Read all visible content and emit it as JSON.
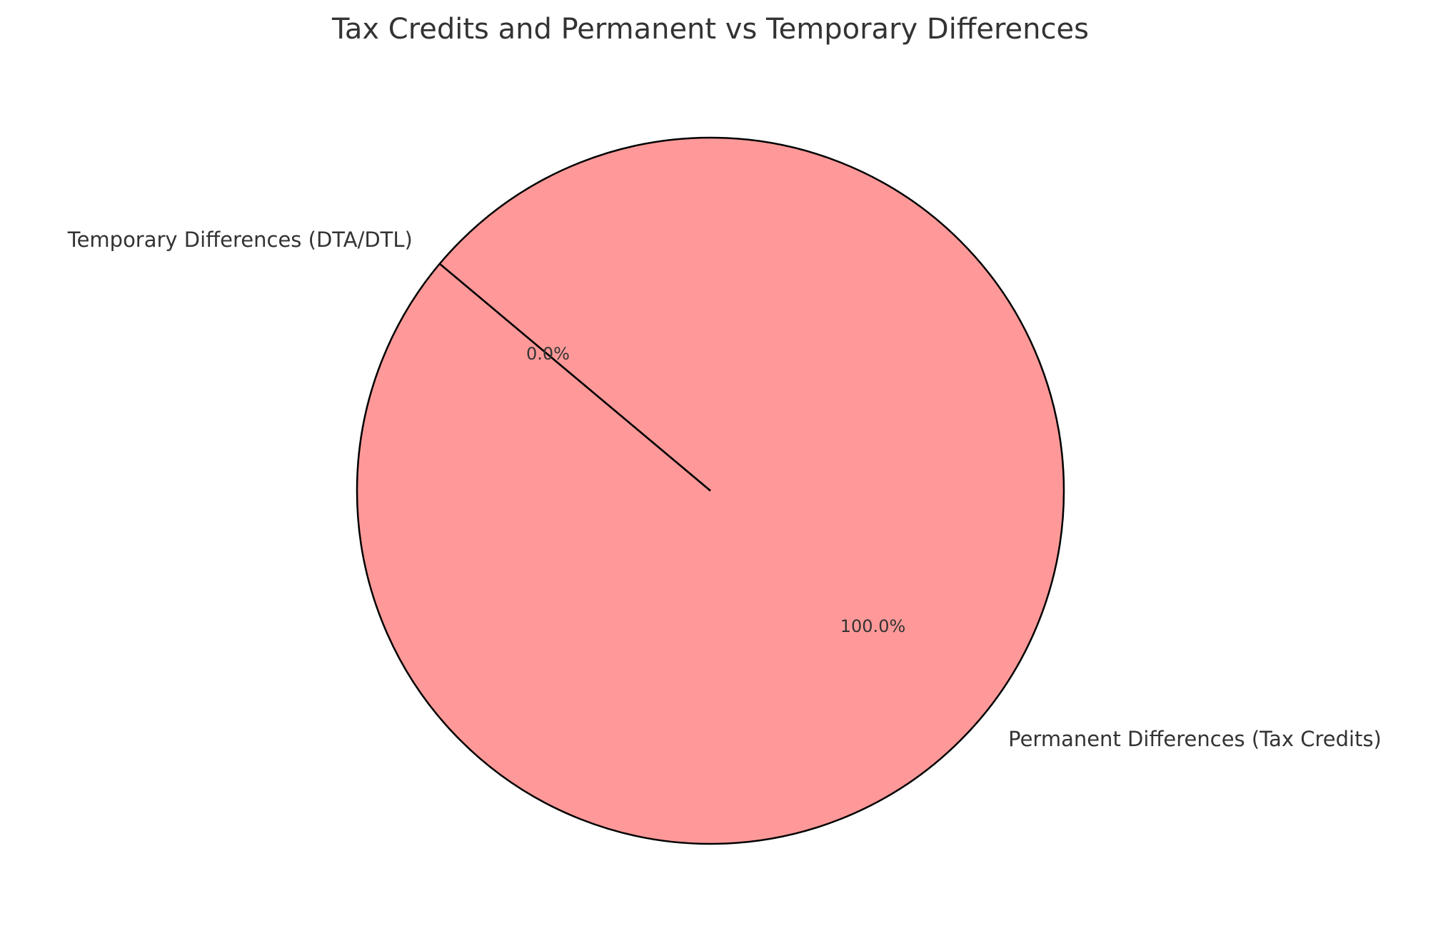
{
  "chart_data": {
    "type": "pie",
    "title": "Tax Credits and Permanent vs Temporary Differences",
    "slices": [
      {
        "label": "Permanent Differences (Tax Credits)",
        "value": 100,
        "percent_label": "100.0%",
        "color": "#ff9999"
      },
      {
        "label": "Temporary Differences (DTA/DTL)",
        "value": 0,
        "percent_label": "0.0%",
        "color": "#66b3ff"
      }
    ],
    "start_angle_deg": 140,
    "edge_color": "#000000"
  }
}
